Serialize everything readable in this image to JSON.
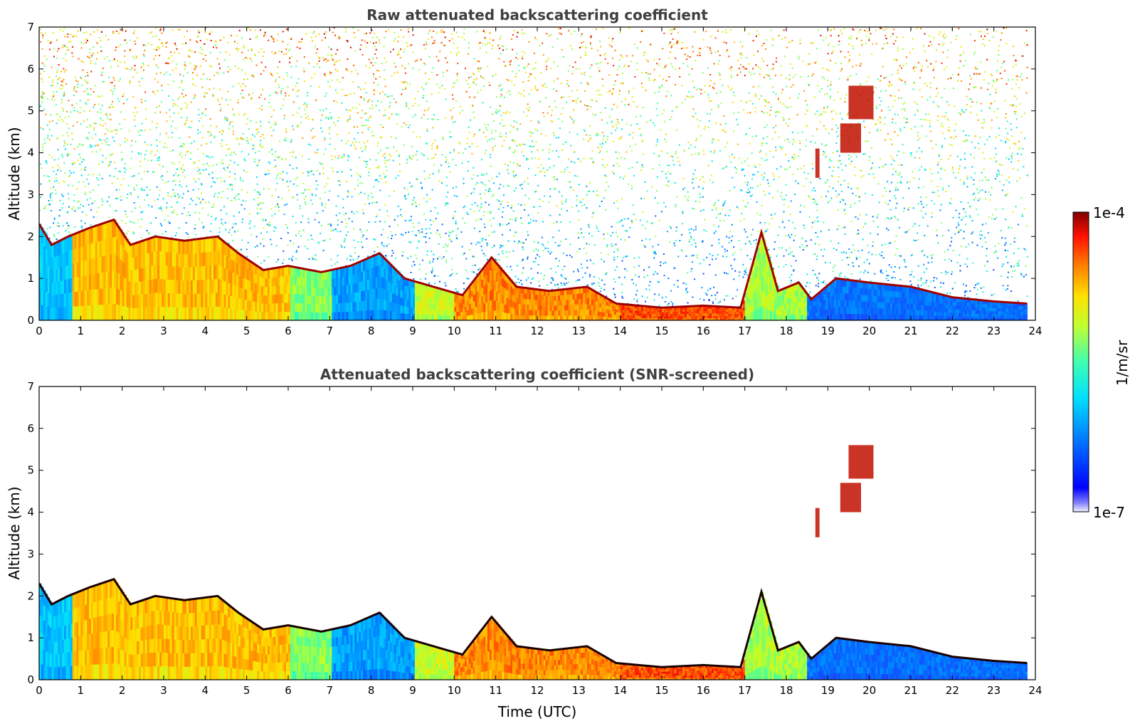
{
  "chart_data": [
    {
      "type": "heatmap",
      "title": "Raw attenuated backscattering coefficient",
      "xlabel": "",
      "ylabel": "Altitude (km)",
      "xlim": [
        0,
        24
      ],
      "ylim": [
        0,
        7
      ],
      "xticks": [
        "0",
        "1",
        "2",
        "3",
        "4",
        "5",
        "6",
        "7",
        "8",
        "9",
        "10",
        "11",
        "12",
        "13",
        "14",
        "15",
        "16",
        "17",
        "18",
        "19",
        "20",
        "21",
        "22",
        "23",
        "24"
      ],
      "yticks": [
        "0",
        "1",
        "2",
        "3",
        "4",
        "5",
        "6",
        "7"
      ],
      "colormap": "jet",
      "noise": "high",
      "boundary_layer_top_km": [
        [
          0,
          2.3
        ],
        [
          0.3,
          1.8
        ],
        [
          0.7,
          2.0
        ],
        [
          1.2,
          2.2
        ],
        [
          1.8,
          2.4
        ],
        [
          2.2,
          1.8
        ],
        [
          2.8,
          2.0
        ],
        [
          3.5,
          1.9
        ],
        [
          4.3,
          2.0
        ],
        [
          4.8,
          1.6
        ],
        [
          5.4,
          1.2
        ],
        [
          6.0,
          1.3
        ],
        [
          6.8,
          1.15
        ],
        [
          7.5,
          1.3
        ],
        [
          8.2,
          1.6
        ],
        [
          8.8,
          1.0
        ],
        [
          9.5,
          0.8
        ],
        [
          10.2,
          0.6
        ],
        [
          10.9,
          1.5
        ],
        [
          11.5,
          0.8
        ],
        [
          12.3,
          0.7
        ],
        [
          13.2,
          0.8
        ],
        [
          13.9,
          0.4
        ],
        [
          15.0,
          0.3
        ],
        [
          16.0,
          0.35
        ],
        [
          16.9,
          0.3
        ],
        [
          17.4,
          2.1
        ],
        [
          17.8,
          0.7
        ],
        [
          18.3,
          0.9
        ],
        [
          18.6,
          0.5
        ],
        [
          19.2,
          1.0
        ],
        [
          20.0,
          0.9
        ],
        [
          21.0,
          0.8
        ],
        [
          22.0,
          0.55
        ],
        [
          23.0,
          0.45
        ],
        [
          23.8,
          0.4
        ]
      ],
      "elevated_features_km": [
        {
          "t0": 18.7,
          "t1": 18.8,
          "z0": 3.4,
          "z1": 4.1
        },
        {
          "t0": 19.3,
          "t1": 19.8,
          "z0": 4.0,
          "z1": 4.7
        },
        {
          "t0": 19.5,
          "t1": 20.1,
          "z0": 4.8,
          "z1": 5.6
        }
      ]
    },
    {
      "type": "heatmap",
      "title": "Attenuated backscattering coefficient (SNR-screened)",
      "xlabel": "Time (UTC)",
      "ylabel": "Altitude (km)",
      "xlim": [
        0,
        24
      ],
      "ylim": [
        0,
        7
      ],
      "xticks": [
        "0",
        "1",
        "2",
        "3",
        "4",
        "5",
        "6",
        "7",
        "8",
        "9",
        "10",
        "11",
        "12",
        "13",
        "14",
        "15",
        "16",
        "17",
        "18",
        "19",
        "20",
        "21",
        "22",
        "23",
        "24"
      ],
      "yticks": [
        "0",
        "1",
        "2",
        "3",
        "4",
        "5",
        "6",
        "7"
      ],
      "colormap": "jet",
      "noise": "screened",
      "boundary_layer_top_km": [
        [
          0,
          2.3
        ],
        [
          0.3,
          1.8
        ],
        [
          0.7,
          2.0
        ],
        [
          1.2,
          2.2
        ],
        [
          1.8,
          2.4
        ],
        [
          2.2,
          1.8
        ],
        [
          2.8,
          2.0
        ],
        [
          3.5,
          1.9
        ],
        [
          4.3,
          2.0
        ],
        [
          4.8,
          1.6
        ],
        [
          5.4,
          1.2
        ],
        [
          6.0,
          1.3
        ],
        [
          6.8,
          1.15
        ],
        [
          7.5,
          1.3
        ],
        [
          8.2,
          1.6
        ],
        [
          8.8,
          1.0
        ],
        [
          9.5,
          0.8
        ],
        [
          10.2,
          0.6
        ],
        [
          10.9,
          1.5
        ],
        [
          11.5,
          0.8
        ],
        [
          12.3,
          0.7
        ],
        [
          13.2,
          0.8
        ],
        [
          13.9,
          0.4
        ],
        [
          15.0,
          0.3
        ],
        [
          16.0,
          0.35
        ],
        [
          16.9,
          0.3
        ],
        [
          17.4,
          2.1
        ],
        [
          17.8,
          0.7
        ],
        [
          18.3,
          0.9
        ],
        [
          18.6,
          0.5
        ],
        [
          19.2,
          1.0
        ],
        [
          20.0,
          0.9
        ],
        [
          21.0,
          0.8
        ],
        [
          22.0,
          0.55
        ],
        [
          23.0,
          0.45
        ],
        [
          23.8,
          0.4
        ]
      ],
      "elevated_features_km": [
        {
          "t0": 18.7,
          "t1": 18.8,
          "z0": 3.4,
          "z1": 4.1
        },
        {
          "t0": 19.3,
          "t1": 19.8,
          "z0": 4.0,
          "z1": 4.7
        },
        {
          "t0": 19.5,
          "t1": 20.1,
          "z0": 4.8,
          "z1": 5.6
        }
      ]
    }
  ],
  "colorbar": {
    "label": "1/m/sr",
    "max_label": "1e-4",
    "min_label": "1e-7",
    "colors": [
      "#e8e8f8",
      "#0000ff",
      "#00bfff",
      "#00ffcc",
      "#80ff40",
      "#ffff00",
      "#ffa000",
      "#ff2000",
      "#800000"
    ]
  }
}
